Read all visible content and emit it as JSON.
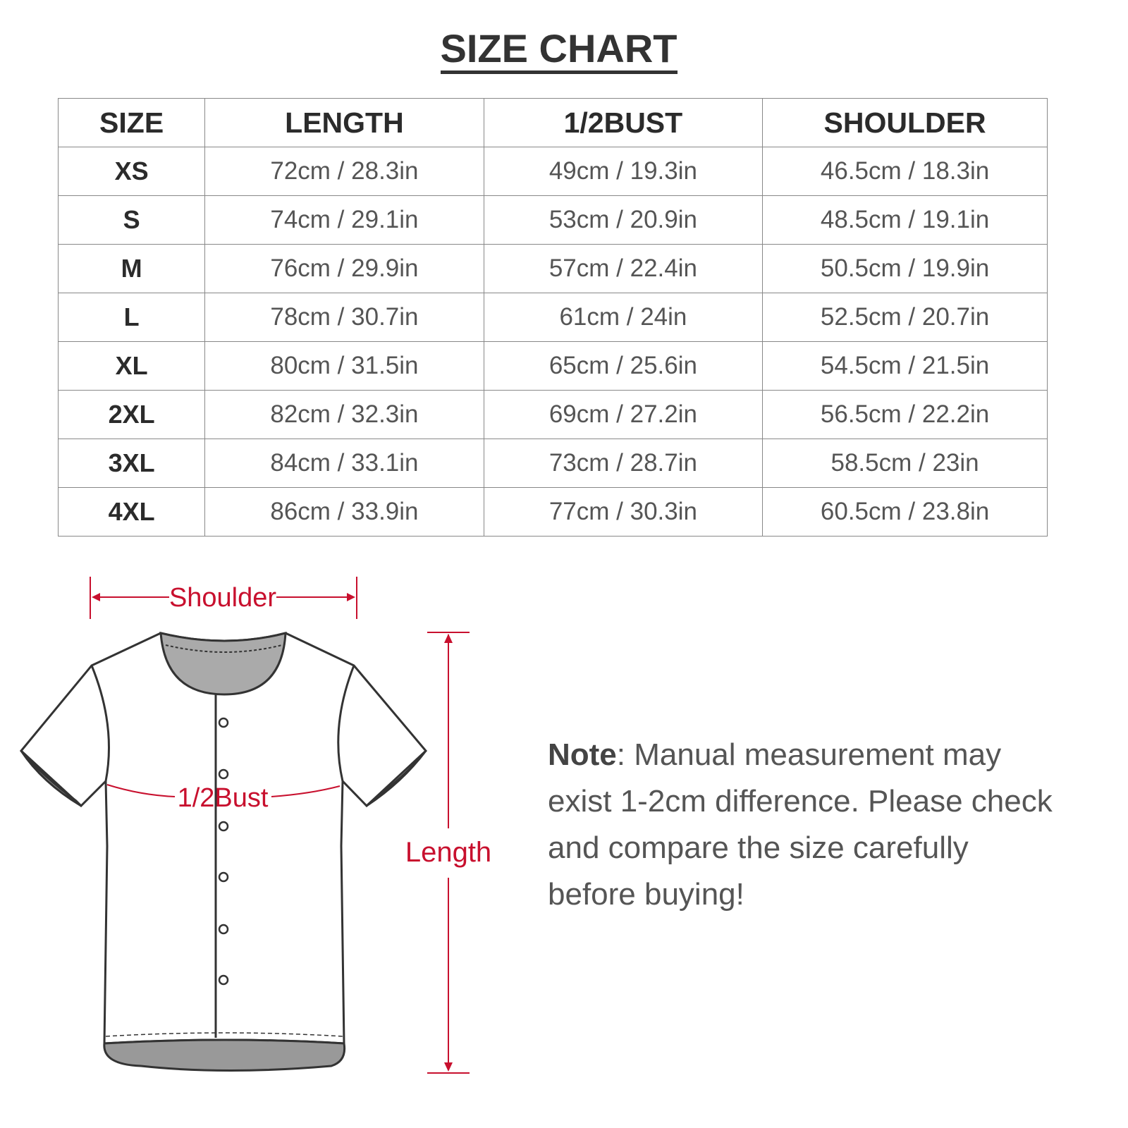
{
  "title": "SIZE CHART",
  "table": {
    "headers": [
      "SIZE",
      "LENGTH",
      "1/2BUST",
      "SHOULDER"
    ],
    "rows": [
      [
        "XS",
        "72cm / 28.3in",
        "49cm / 19.3in",
        "46.5cm / 18.3in"
      ],
      [
        "S",
        "74cm / 29.1in",
        "53cm / 20.9in",
        "48.5cm / 19.1in"
      ],
      [
        "M",
        "76cm / 29.9in",
        "57cm / 22.4in",
        "50.5cm / 19.9in"
      ],
      [
        "L",
        "78cm / 30.7in",
        "61cm / 24in",
        "52.5cm / 20.7in"
      ],
      [
        "XL",
        "80cm / 31.5in",
        "65cm / 25.6in",
        "54.5cm / 21.5in"
      ],
      [
        "2XL",
        "82cm / 32.3in",
        "69cm / 27.2in",
        "56.5cm / 22.2in"
      ],
      [
        "3XL",
        "84cm / 33.1in",
        "73cm / 28.7in",
        "58.5cm / 23in"
      ],
      [
        "4XL",
        "86cm / 33.9in",
        "77cm / 30.3in",
        "60.5cm / 23.8in"
      ]
    ]
  },
  "diagram": {
    "shoulder_label": "Shoulder",
    "bust_label": "1/2Bust",
    "length_label": "Length",
    "accent_color": "#c8102e"
  },
  "note": {
    "label": "Note",
    "text": ": Manual measurement may exist 1-2cm difference. Please check and compare the size carefully before buying!"
  }
}
